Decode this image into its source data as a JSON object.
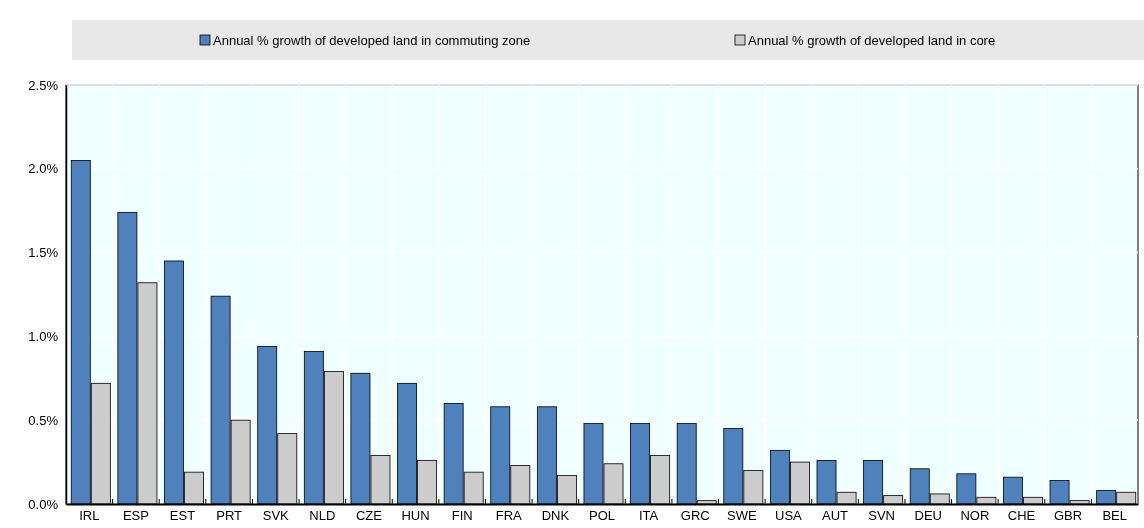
{
  "chart_data": {
    "type": "bar",
    "categories": [
      "IRL",
      "ESP",
      "EST",
      "PRT",
      "SVK",
      "NLD",
      "CZE",
      "HUN",
      "FIN",
      "FRA",
      "DNK",
      "POL",
      "ITA",
      "GRC",
      "SWE",
      "USA",
      "AUT",
      "SVN",
      "DEU",
      "NOR",
      "CHE",
      "GBR",
      "BEL"
    ],
    "series": [
      {
        "name": "Annual % growth of developed land in commuting zone",
        "color": "#4f81bd",
        "values": [
          2.05,
          1.74,
          1.45,
          1.24,
          0.94,
          0.91,
          0.78,
          0.72,
          0.6,
          0.58,
          0.58,
          0.48,
          0.48,
          0.48,
          0.45,
          0.32,
          0.26,
          0.26,
          0.21,
          0.18,
          0.16,
          0.14,
          0.08
        ]
      },
      {
        "name": "Annual % growth of developed land in core",
        "color": "#cccccc",
        "values": [
          0.72,
          1.32,
          0.19,
          0.5,
          0.42,
          0.79,
          0.29,
          0.26,
          0.19,
          0.23,
          0.17,
          0.24,
          0.29,
          0.02,
          0.2,
          0.25,
          0.07,
          0.05,
          0.06,
          0.04,
          0.04,
          0.02,
          0.07
        ]
      }
    ],
    "ylim": [
      0,
      2.5
    ],
    "yticks": [
      {
        "value": 0,
        "label": "0.0%"
      },
      {
        "value": 0.5,
        "label": "0.5%"
      },
      {
        "value": 1,
        "label": "1.0%"
      },
      {
        "value": 1.5,
        "label": "1.5%"
      },
      {
        "value": 2,
        "label": "2.0%"
      },
      {
        "value": 2.5,
        "label": "2.5%"
      }
    ],
    "grid": true,
    "legend": "top"
  }
}
